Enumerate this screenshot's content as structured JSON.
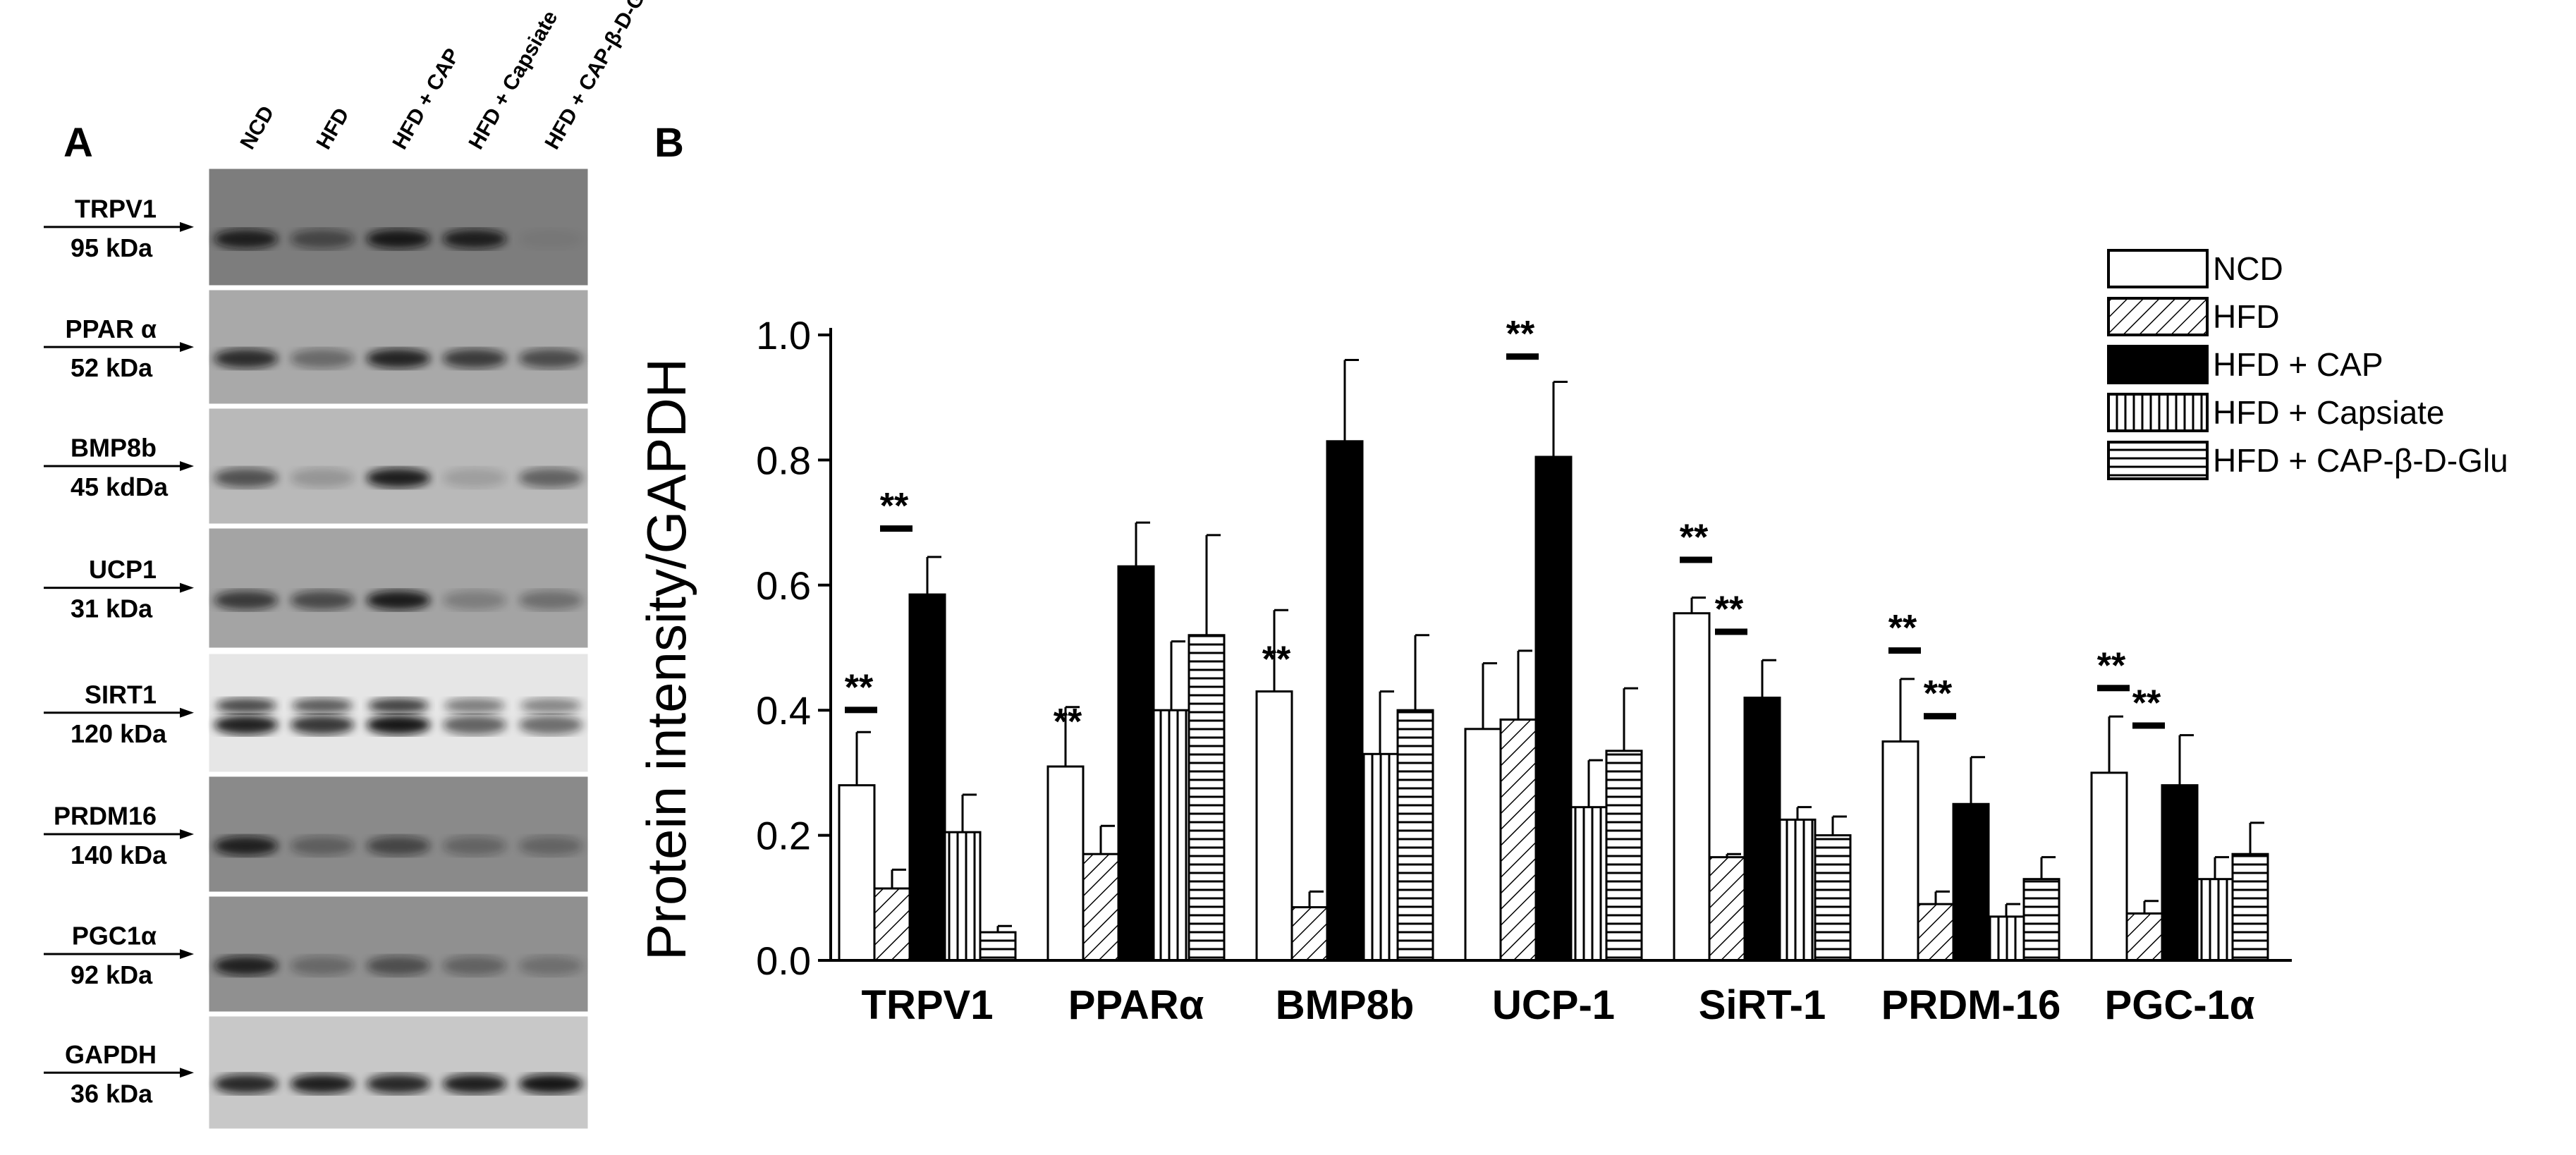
{
  "panel_a": {
    "letter": "A",
    "lanes": [
      "NCD",
      "HFD",
      "HFD + CAP",
      "HFD + Capsiate",
      "HFD + CAP-β-D-Glu"
    ],
    "blots": [
      {
        "name": "TRPV1",
        "size": "95 kDa",
        "bg": "#7d7d7d",
        "band": [
          0.85,
          0.5,
          0.9,
          0.85,
          0.05
        ]
      },
      {
        "name": "PPAR α",
        "size": "52 kDa",
        "bg": "#a9a9a9",
        "band": [
          0.8,
          0.4,
          0.85,
          0.7,
          0.6
        ]
      },
      {
        "name": "BMP8b",
        "size": "45 kdDa",
        "bg": "#b9b9b9",
        "band": [
          0.6,
          0.2,
          0.9,
          0.15,
          0.5
        ]
      },
      {
        "name": "UCP1",
        "size": "31 kDa",
        "bg": "#a4a4a4",
        "band": [
          0.7,
          0.6,
          0.9,
          0.25,
          0.35
        ]
      },
      {
        "name": "SIRT1",
        "size": "120 kDa",
        "bg": "#e6e6e6",
        "band": [
          0.9,
          0.8,
          0.95,
          0.6,
          0.55
        ]
      },
      {
        "name": "PRDM16",
        "size": "140 kDa",
        "bg": "#8a8a8a",
        "band": [
          0.85,
          0.35,
          0.55,
          0.3,
          0.3
        ]
      },
      {
        "name": "PGC1α",
        "size": "92 kDa",
        "bg": "#909090",
        "band": [
          0.85,
          0.3,
          0.5,
          0.35,
          0.25
        ]
      },
      {
        "name": "GAPDH",
        "size": "36 kDa",
        "bg": "#c8c8c8",
        "band": [
          0.85,
          0.9,
          0.85,
          0.9,
          0.95
        ]
      }
    ]
  },
  "chart_data": {
    "type": "bar",
    "panel_letter": "B",
    "ylabel": "Protein intensity/GAPDH",
    "xlabel": "",
    "ylim": [
      0,
      1.0
    ],
    "yticks": [
      "0.0",
      "0.2",
      "0.4",
      "0.6",
      "0.8",
      "1.0"
    ],
    "categories": [
      "TRPV1",
      "PPARα",
      "BMP8b",
      "UCP-1",
      "SiRT-1",
      "PRDM-16",
      "PGC-1α"
    ],
    "legend_position": "top-right",
    "significance_label": "**",
    "series": [
      {
        "name": "NCD",
        "pattern": "white",
        "values": [
          0.28,
          0.31,
          0.43,
          0.37,
          0.555,
          0.35,
          0.3
        ],
        "errors": [
          0.085,
          0.095,
          0.13,
          0.105,
          0.025,
          0.1,
          0.09
        ]
      },
      {
        "name": "HFD",
        "pattern": "diagonal",
        "values": [
          0.115,
          0.17,
          0.085,
          0.385,
          0.165,
          0.09,
          0.075
        ],
        "errors": [
          0.03,
          0.045,
          0.025,
          0.11,
          0.005,
          0.02,
          0.02
        ]
      },
      {
        "name": "HFD + CAP",
        "pattern": "black",
        "values": [
          0.585,
          0.63,
          0.83,
          0.805,
          0.42,
          0.25,
          0.28
        ],
        "errors": [
          0.06,
          0.07,
          0.13,
          0.12,
          0.06,
          0.075,
          0.08
        ]
      },
      {
        "name": "HFD + Capsiate",
        "pattern": "vertical",
        "values": [
          0.205,
          0.4,
          0.33,
          0.245,
          0.225,
          0.07,
          0.13
        ],
        "errors": [
          0.06,
          0.11,
          0.1,
          0.075,
          0.02,
          0.02,
          0.035
        ]
      },
      {
        "name": "HFD + CAP-β-D-Glu",
        "pattern": "horizontal",
        "values": [
          0.045,
          0.52,
          0.4,
          0.335,
          0.2,
          0.13,
          0.17
        ],
        "errors": [
          0.01,
          0.16,
          0.12,
          0.1,
          0.03,
          0.035,
          0.05
        ]
      }
    ],
    "significance": [
      {
        "group": 0,
        "y": 0.41,
        "bar": true
      },
      {
        "group": 0,
        "y": 0.7,
        "bar": true,
        "offset": 1
      },
      {
        "group": 1,
        "y": 0.355,
        "bar": false
      },
      {
        "group": 2,
        "y": 0.455,
        "bar": false
      },
      {
        "group": 3,
        "y": 0.975,
        "bar": true,
        "offset": 1
      },
      {
        "group": 4,
        "y": 0.65,
        "bar": true
      },
      {
        "group": 4,
        "y": 0.535,
        "bar": true,
        "offset": 1
      },
      {
        "group": 5,
        "y": 0.505,
        "bar": true
      },
      {
        "group": 5,
        "y": 0.4,
        "bar": true,
        "offset": 1
      },
      {
        "group": 6,
        "y": 0.445,
        "bar": true
      },
      {
        "group": 6,
        "y": 0.385,
        "bar": true,
        "offset": 1
      }
    ]
  }
}
